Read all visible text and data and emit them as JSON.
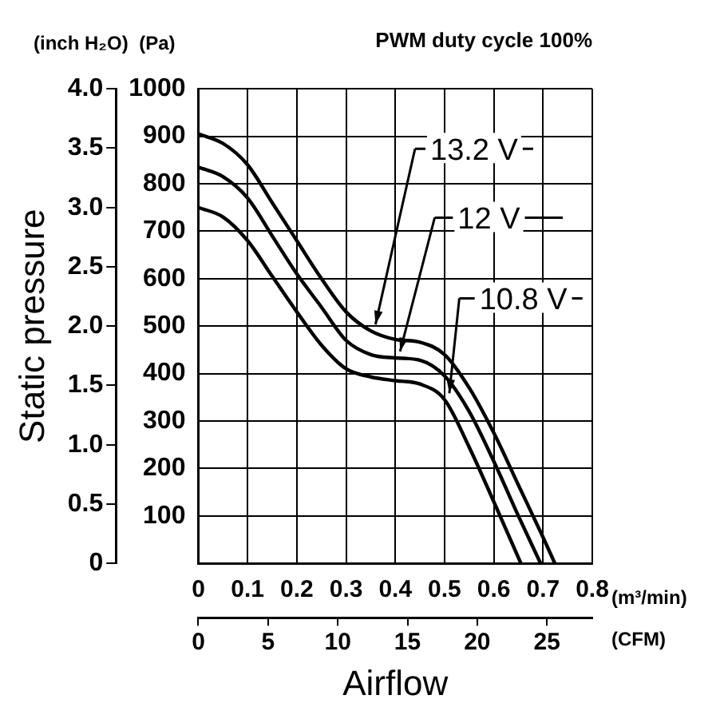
{
  "chart_data": {
    "type": "line",
    "title": "PWM duty cycle 100%",
    "ylabel": "(Pa)",
    "xlabel": "Airflow",
    "y2label": "Static pressure",
    "x2label": "(CFM)",
    "annotations": [
      "(inch H₂O)",
      "(m³/min)"
    ],
    "xlim": [
      0,
      0.8
    ],
    "xticks": [
      0,
      0.1,
      0.2,
      0.3,
      0.4,
      0.5,
      0.6,
      0.7,
      0.8
    ],
    "ylim": [
      0,
      1000
    ],
    "yticks": [
      {
        "value": 0,
        "label": null
      },
      100,
      200,
      300,
      400,
      500,
      600,
      700,
      800,
      900,
      1000
    ],
    "y2lim": [
      0,
      4.0
    ],
    "y2ticks": [
      {
        "value": 0,
        "label": "0"
      },
      {
        "value": 0.5,
        "label": "0.5"
      },
      {
        "value": 1,
        "label": "1.0"
      },
      {
        "value": 1.5,
        "label": "1.5"
      },
      {
        "value": 2,
        "label": "2.0"
      },
      {
        "value": 2.5,
        "label": "2.5"
      },
      {
        "value": 3,
        "label": "3.0"
      },
      {
        "value": 3.5,
        "label": "3.5"
      },
      {
        "value": 4,
        "label": "4.0"
      }
    ],
    "x2lim": [
      0,
      28.25
    ],
    "x2ticks": [
      0,
      5,
      10,
      15,
      20,
      25
    ],
    "grid": true,
    "legend": "top right",
    "marker": "none",
    "line_style": "solid",
    "series": [
      {
        "name": "13.2 V",
        "color": "#000000",
        "x": [
          0,
          0.05,
          0.1,
          0.15,
          0.2,
          0.25,
          0.3,
          0.35,
          0.4,
          0.45,
          0.5,
          0.55,
          0.6,
          0.65,
          0.7,
          0.724
        ],
        "values": [
          905,
          885,
          840,
          760,
          680,
          600,
          530,
          490,
          472,
          466,
          440,
          370,
          275,
          165,
          55,
          0
        ]
      },
      {
        "name": "12 V",
        "color": "#000000",
        "x": [
          0,
          0.05,
          0.1,
          0.15,
          0.2,
          0.25,
          0.3,
          0.35,
          0.4,
          0.45,
          0.5,
          0.55,
          0.6,
          0.65,
          0.695
        ],
        "values": [
          835,
          815,
          770,
          690,
          610,
          540,
          470,
          440,
          433,
          428,
          395,
          320,
          215,
          100,
          0
        ]
      },
      {
        "name": "10.8 V",
        "color": "#000000",
        "x": [
          0,
          0.05,
          0.1,
          0.15,
          0.2,
          0.25,
          0.3,
          0.35,
          0.4,
          0.45,
          0.5,
          0.55,
          0.6,
          0.655
        ],
        "values": [
          750,
          730,
          680,
          605,
          530,
          460,
          410,
          393,
          385,
          378,
          345,
          245,
          130,
          0
        ]
      }
    ]
  }
}
